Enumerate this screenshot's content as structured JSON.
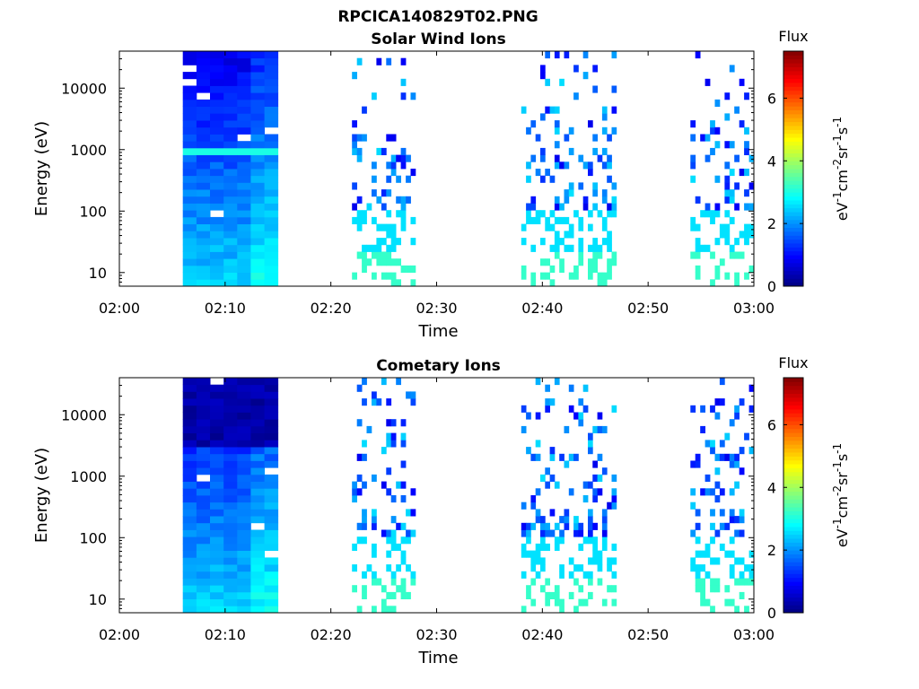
{
  "figure": {
    "title": "RPCICA140829T02.PNG"
  },
  "chart_data": [
    {
      "type": "heatmap",
      "title": "Solar Wind Ions",
      "xlabel": "Time",
      "ylabel": "Energy (eV)",
      "x_ticks": [
        "02:00",
        "02:10",
        "02:20",
        "02:30",
        "02:40",
        "02:50",
        "03:00"
      ],
      "x_range": [
        "02:00",
        "03:00"
      ],
      "y_scale": "log",
      "y_ticks": [
        "10",
        "100",
        "1000",
        "10000"
      ],
      "y_range": [
        6,
        40000
      ],
      "colorbar": {
        "label": "Flux",
        "units": "eV-1cm-2sr-1s-1",
        "ticks": [
          "0",
          "2",
          "4",
          "6"
        ],
        "range": [
          0,
          7.5
        ],
        "colormap": "jet"
      },
      "data_blocks": [
        {
          "start": "02:06",
          "end": "02:15",
          "pattern": "dense",
          "peak_energy_eV": 900,
          "peak_flux": 3
        },
        {
          "start": "02:22",
          "end": "02:28",
          "pattern": "sparse"
        },
        {
          "start": "02:38",
          "end": "02:47",
          "pattern": "sparse"
        },
        {
          "start": "02:54",
          "end": "03:00",
          "pattern": "sparse"
        }
      ]
    },
    {
      "type": "heatmap",
      "title": "Cometary Ions",
      "xlabel": "Time",
      "ylabel": "Energy (eV)",
      "x_ticks": [
        "02:00",
        "02:10",
        "02:20",
        "02:30",
        "02:40",
        "02:50",
        "03:00"
      ],
      "x_range": [
        "02:00",
        "03:00"
      ],
      "y_scale": "log",
      "y_ticks": [
        "10",
        "100",
        "1000",
        "10000"
      ],
      "y_range": [
        6,
        40000
      ],
      "colorbar": {
        "label": "Flux",
        "units": "eV-1cm-2sr-1s-1",
        "ticks": [
          "0",
          "2",
          "4",
          "6"
        ],
        "range": [
          0,
          7.5
        ],
        "colormap": "jet"
      },
      "data_blocks": [
        {
          "start": "02:06",
          "end": "02:15",
          "pattern": "dense"
        },
        {
          "start": "02:22",
          "end": "02:28",
          "pattern": "sparse"
        },
        {
          "start": "02:38",
          "end": "02:47",
          "pattern": "sparse"
        },
        {
          "start": "02:54",
          "end": "03:00",
          "pattern": "sparse"
        }
      ]
    }
  ]
}
